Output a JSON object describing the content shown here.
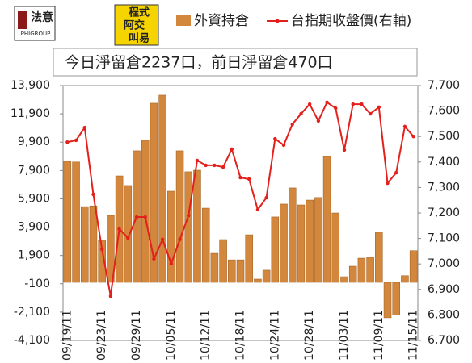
{
  "header": {
    "logo_left": "法意",
    "logo_left_sub": "PHIGROUP",
    "logo_right_top": "程式",
    "logo_right_mid": "阿交",
    "logo_right_bottom": "叫易"
  },
  "chart_data": {
    "type": "bar-line",
    "annotation": "今日淨留倉2237口，前日淨留倉470口",
    "categories": [
      "09/19/11",
      null,
      null,
      null,
      "09/23/11",
      null,
      null,
      null,
      "09/29/11",
      null,
      null,
      null,
      "10/05/11",
      null,
      null,
      null,
      "10/12/11",
      null,
      null,
      null,
      "10/18/11",
      null,
      null,
      null,
      "10/24/11",
      null,
      null,
      null,
      "10/28/11",
      null,
      null,
      null,
      "11/03/11",
      null,
      null,
      null,
      "11/09/11",
      null,
      null,
      null,
      "11/15/11"
    ],
    "series": [
      {
        "name": "外資持倉",
        "type": "bar",
        "color": "#d2873c",
        "values": [
          8550,
          8500,
          5350,
          5400,
          2970,
          4730,
          7520,
          6840,
          9290,
          10030,
          12650,
          13220,
          6440,
          9290,
          7810,
          7920,
          5240,
          2050,
          3020,
          1590,
          1590,
          3360,
          230,
          860,
          4620,
          5530,
          6670,
          5470,
          5810,
          5990,
          8890,
          4900,
          400,
          1140,
          1710,
          1770,
          3540,
          -2500,
          -2300,
          470,
          2237
        ]
      },
      {
        "name": "台指期收盤價(右軸)",
        "type": "line",
        "axis": "y2",
        "color": "#e3201b",
        "values": [
          7478,
          7485,
          7535,
          7273,
          7058,
          6874,
          7137,
          7102,
          7184,
          7184,
          7020,
          7096,
          7001,
          7096,
          7190,
          7406,
          7387,
          7387,
          7380,
          7450,
          7339,
          7333,
          7213,
          7260,
          7491,
          7466,
          7548,
          7589,
          7627,
          7561,
          7634,
          7611,
          7447,
          7627,
          7627,
          7589,
          7615,
          7317,
          7358,
          7539,
          7500
        ]
      }
    ],
    "ylim": [
      -4100,
      13900
    ],
    "yticks": [
      {
        "value": -4100,
        "label": "-4,100"
      },
      {
        "value": -2100,
        "label": "-2,100"
      },
      -100,
      {
        "value": 1900,
        "label": "1,900"
      },
      {
        "value": 3900,
        "label": "3,900"
      },
      {
        "value": 5900,
        "label": "5,900"
      },
      {
        "value": 7900,
        "label": "7,900"
      },
      {
        "value": 9900,
        "label": "9,900"
      },
      {
        "value": 11900,
        "label": "11,900"
      },
      {
        "value": 13900,
        "label": "13,900"
      }
    ],
    "y2lim": [
      6700,
      7700
    ],
    "y2ticks": [
      {
        "value": 6700,
        "label": "6,700"
      },
      {
        "value": 6800,
        "label": "6,800"
      },
      {
        "value": 6900,
        "label": "6,900"
      },
      {
        "value": 7000,
        "label": "7,000"
      },
      {
        "value": 7100,
        "label": "7,100"
      },
      {
        "value": 7200,
        "label": "7,200"
      },
      {
        "value": 7300,
        "label": "7,300"
      },
      {
        "value": 7400,
        "label": "7,400"
      },
      {
        "value": 7500,
        "label": "7,500"
      },
      {
        "value": 7600,
        "label": "7,600"
      },
      {
        "value": 7700,
        "label": "7,700"
      }
    ]
  }
}
